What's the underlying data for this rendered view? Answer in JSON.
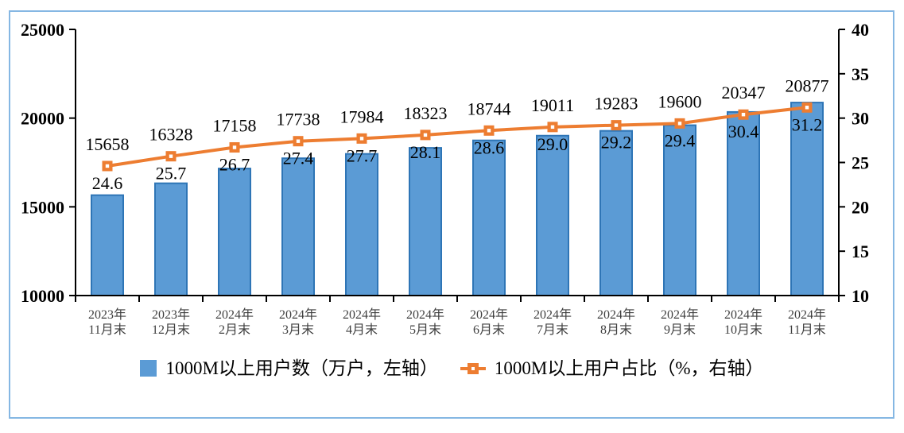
{
  "chart_data": {
    "type": "combo-bar-line",
    "categories": [
      [
        "2023年",
        "11月末"
      ],
      [
        "2023年",
        "12月末"
      ],
      [
        "2024年",
        "2月末"
      ],
      [
        "2024年",
        "3月末"
      ],
      [
        "2024年",
        "4月末"
      ],
      [
        "2024年",
        "5月末"
      ],
      [
        "2024年",
        "6月末"
      ],
      [
        "2024年",
        "7月末"
      ],
      [
        "2024年",
        "8月末"
      ],
      [
        "2024年",
        "9月末"
      ],
      [
        "2024年",
        "10月末"
      ],
      [
        "2024年",
        "11月末"
      ]
    ],
    "series": [
      {
        "name": "1000M以上用户数（万户，左轴）",
        "type": "bar",
        "axis": "left",
        "color": "#5B9BD5",
        "border_color": "#2E75B6",
        "values": [
          15658,
          16328,
          17158,
          17738,
          17984,
          18323,
          18744,
          19011,
          19283,
          19600,
          20347,
          20877
        ],
        "labels": [
          "15658",
          "16328",
          "17158",
          "17738",
          "17984",
          "18323",
          "18744",
          "19011",
          "19283",
          "19600",
          "20347",
          "20877"
        ]
      },
      {
        "name": "1000M以上用户占比（%，右轴）",
        "type": "line",
        "axis": "right",
        "color": "#ED7D31",
        "values": [
          24.6,
          25.7,
          26.7,
          27.4,
          27.7,
          28.1,
          28.6,
          29.0,
          29.2,
          29.4,
          30.4,
          31.2
        ],
        "labels": [
          "24.6",
          "25.7",
          "26.7",
          "27.4",
          "27.7",
          "28.1",
          "28.6",
          "29.0",
          "29.2",
          "29.4",
          "30.4",
          "31.2"
        ]
      }
    ],
    "left_axis": {
      "min": 10000,
      "max": 25000,
      "ticks": [
        10000,
        15000,
        20000,
        25000
      ],
      "tick_labels": [
        "10000",
        "15000",
        "20000",
        "25000"
      ]
    },
    "right_axis": {
      "min": 10,
      "max": 40,
      "ticks": [
        10,
        15,
        20,
        25,
        30,
        35,
        40
      ],
      "tick_labels": [
        "10",
        "15",
        "20",
        "25",
        "30",
        "35",
        "40"
      ]
    },
    "title": "",
    "grid": false,
    "legend_position": "bottom",
    "axis_color": "#000000",
    "category_label_color": "#3F3F3F",
    "data_label_color": "#000000",
    "frame_border_color": "#85B7E3"
  }
}
